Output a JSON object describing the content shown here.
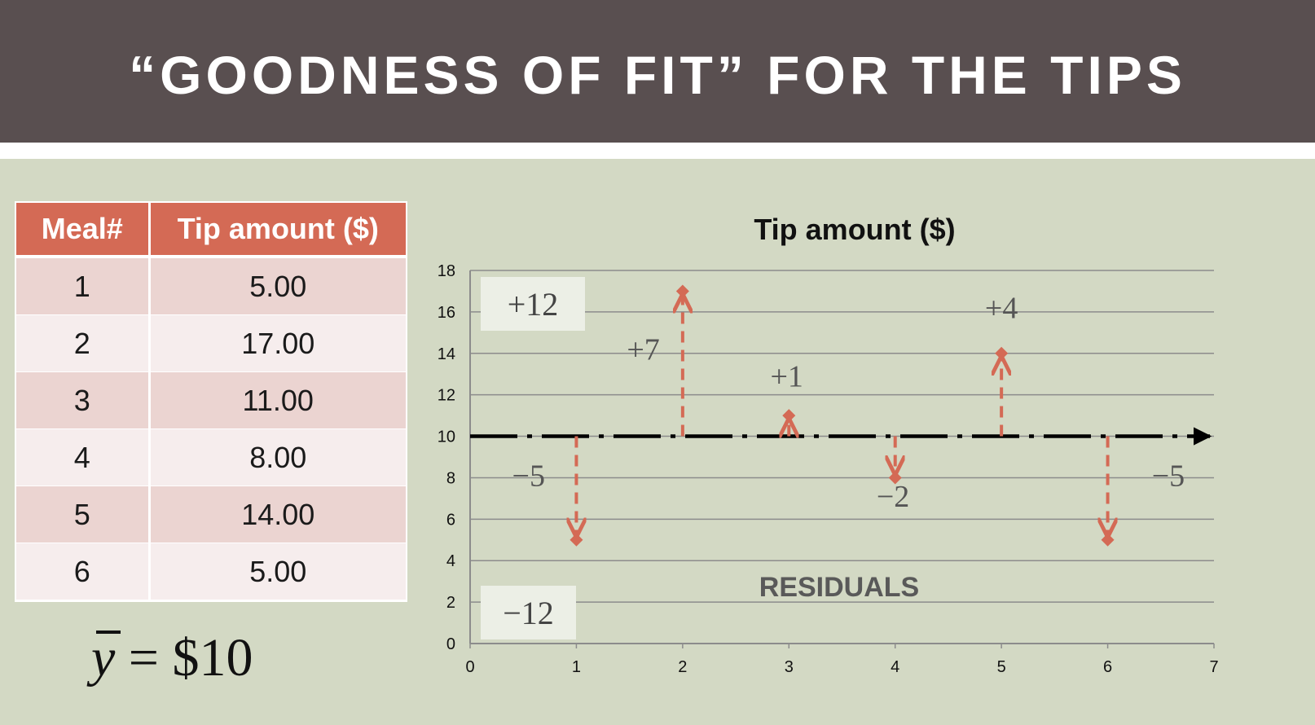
{
  "slide": {
    "title": "“GOODNESS OF FIT” FOR THE TIPS"
  },
  "table": {
    "headers": [
      "Meal#",
      "Tip amount ($)"
    ],
    "rows": [
      [
        "1",
        "5.00"
      ],
      [
        "2",
        "17.00"
      ],
      [
        "3",
        "11.00"
      ],
      [
        "4",
        "8.00"
      ],
      [
        "5",
        "14.00"
      ],
      [
        "6",
        "5.00"
      ]
    ]
  },
  "mean": {
    "symbol": "y",
    "text": " = $10"
  },
  "chart_data": {
    "type": "scatter",
    "title": "Tip amount ($)",
    "xlim": [
      0,
      7
    ],
    "ylim": [
      0,
      18
    ],
    "xticks": [
      0,
      1,
      2,
      3,
      4,
      5,
      6,
      7
    ],
    "yticks": [
      0,
      2,
      4,
      6,
      8,
      10,
      12,
      14,
      16,
      18
    ],
    "grid": true,
    "mean_line": 10,
    "points": [
      {
        "x": 1,
        "y": 5
      },
      {
        "x": 2,
        "y": 17
      },
      {
        "x": 3,
        "y": 11
      },
      {
        "x": 4,
        "y": 8
      },
      {
        "x": 5,
        "y": 14
      },
      {
        "x": 6,
        "y": 5
      }
    ],
    "residual_labels": [
      {
        "text": "−5",
        "x": 0.55,
        "y": 7.6
      },
      {
        "text": "+7",
        "x": 1.63,
        "y": 13.7
      },
      {
        "text": "+1",
        "x": 2.98,
        "y": 12.4
      },
      {
        "text": "−2",
        "x": 3.98,
        "y": 6.6
      },
      {
        "text": "+4",
        "x": 5.0,
        "y": 15.7
      },
      {
        "text": "−5",
        "x": 6.57,
        "y": 7.6
      }
    ],
    "positive_total": "+12",
    "negative_total": "−12",
    "annotation": "RESIDUALS",
    "colors": {
      "residual": "#d46a55",
      "mean_line": "#000000",
      "grid": "#8c8c8c",
      "point": "#d46a55"
    }
  }
}
